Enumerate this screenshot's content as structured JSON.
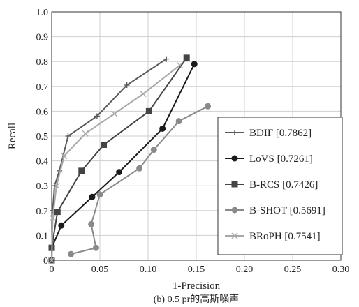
{
  "chart_data": {
    "type": "line",
    "title": "",
    "caption": "(b) 0.5 pr的高斯噪声",
    "xlabel": "1-Precision",
    "ylabel": "Recall",
    "xlim": [
      0,
      0.3
    ],
    "ylim": [
      0,
      1.0
    ],
    "xticks": [
      "0",
      "0.05",
      "0.10",
      "0.15",
      "0.20",
      "0.25",
      "0.30"
    ],
    "yticks": [
      "0",
      "0.1",
      "0.2",
      "0.3",
      "0.4",
      "0.5",
      "0.6",
      "0.7",
      "0.8",
      "0.9",
      "1.0"
    ],
    "grid": true,
    "legend_position": "right",
    "series": [
      {
        "name": "BDIF [0.7862]",
        "color": "#5a5a5a",
        "marker": "plus",
        "x": [
          0,
          0.001,
          0.003,
          0.008,
          0.017,
          0.047,
          0.078,
          0.119
        ],
        "y": [
          0,
          0.2,
          0.3,
          0.36,
          0.5,
          0.58,
          0.705,
          0.81
        ]
      },
      {
        "name": "LoVS [0.7261]",
        "color": "#1a1a1a",
        "marker": "circle",
        "x": [
          0,
          0.01,
          0.042,
          0.07,
          0.115,
          0.148
        ],
        "y": [
          0.05,
          0.14,
          0.255,
          0.355,
          0.53,
          0.79
        ]
      },
      {
        "name": "B-RCS [0.7426]",
        "color": "#444444",
        "marker": "square",
        "x": [
          0,
          0,
          0.006,
          0.031,
          0.054,
          0.101,
          0.14
        ],
        "y": [
          0,
          0.05,
          0.195,
          0.36,
          0.465,
          0.6,
          0.815
        ]
      },
      {
        "name": "B-SHOT [0.5691]",
        "color": "#8a8a8a",
        "marker": "circle",
        "x": [
          0.02,
          0.046,
          0.041,
          0.05,
          0.091,
          0.106,
          0.132,
          0.162
        ],
        "y": [
          0.025,
          0.05,
          0.145,
          0.265,
          0.37,
          0.445,
          0.56,
          0.62
        ]
      },
      {
        "name": "BRoPH [0.7541]",
        "color": "#a8a8a8",
        "marker": "x",
        "x": [
          0,
          0.001,
          0.005,
          0.013,
          0.035,
          0.065,
          0.095,
          0.133
        ],
        "y": [
          0,
          0.17,
          0.3,
          0.42,
          0.51,
          0.59,
          0.67,
          0.785
        ]
      }
    ]
  }
}
